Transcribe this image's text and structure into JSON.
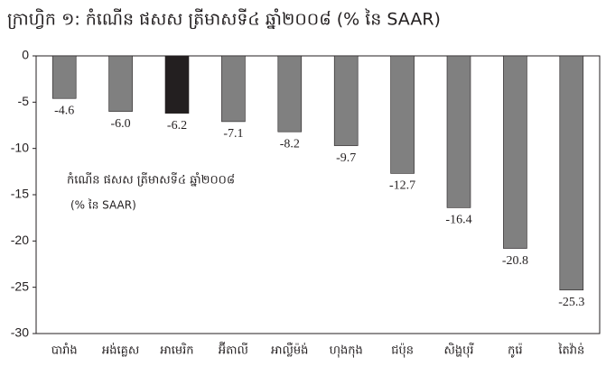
{
  "chart_data": {
    "type": "bar",
    "title": "ក្រាហ្វិក ១: កំណើន ផសស ត្រីមាសទី៤ ឆ្នាំ២០០៨ (% នៃ SAAR)",
    "annotations": [
      "កំណើន ផសស ត្រីមាសទី៤ ឆ្នាំ២០០៨",
      "(% នៃ SAAR)"
    ],
    "categories": [
      "បារាំង",
      "អង់គ្លេស",
      "អាមេរិក",
      "អ៊ីតាលី",
      "អាល្លឺម៉ង់",
      "ហុងកុង",
      "ជប៉ុន",
      "សិង្ហបុរី",
      "កូរ៉េ",
      "តៃវ៉ាន់"
    ],
    "values": [
      -4.6,
      -6.0,
      -6.2,
      -7.1,
      -8.2,
      -9.7,
      -12.7,
      -16.4,
      -20.8,
      -25.3
    ],
    "value_labels": [
      "-4.6",
      "-6.0",
      "-6.2",
      "-7.1",
      "-8.2",
      "-9.7",
      "-12.7",
      "-16.4",
      "-20.8",
      "-25.3"
    ],
    "colors": [
      "#808080",
      "#808080",
      "#231f20",
      "#808080",
      "#808080",
      "#808080",
      "#808080",
      "#808080",
      "#808080",
      "#808080"
    ],
    "ylim": [
      -30,
      0
    ],
    "yticks": [
      0,
      -5,
      -10,
      -15,
      -20,
      -25,
      -30
    ],
    "grid": false
  }
}
